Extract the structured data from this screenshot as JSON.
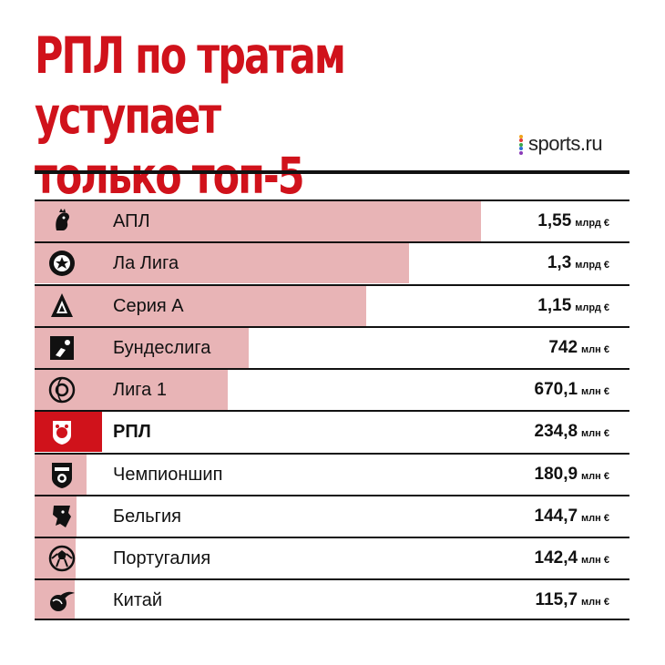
{
  "title_line1": "РПЛ по тратам уступает",
  "title_line2": "только топ-5",
  "brand": "sports.ru",
  "colors": {
    "accent": "#d0121b",
    "bar": "#e8b4b6",
    "text": "#111111",
    "logo_dots": [
      "#f0a31a",
      "#e23b3b",
      "#3aa74a",
      "#2f6fd6",
      "#8a3ab8"
    ]
  },
  "chart_data": {
    "type": "bar",
    "orientation": "horizontal",
    "title": "РПЛ по тратам уступает только топ-5",
    "categories": [
      "АПЛ",
      "Ла Лига",
      "Серия А",
      "Бундеслига",
      "Лига 1",
      "РПЛ",
      "Чемпионшип",
      "Бельгия",
      "Португалия",
      "Китай"
    ],
    "values_eur_millions": [
      1550,
      1300,
      1150,
      742,
      670.1,
      234.8,
      180.9,
      144.7,
      142.4,
      115.7
    ],
    "highlight": "РПЛ",
    "rows": [
      {
        "label": "АПЛ",
        "num": "1,55",
        "unit": "млрд €",
        "icon": "premier-league-lion-icon"
      },
      {
        "label": "Ла Лига",
        "num": "1,3",
        "unit": "млрд €",
        "icon": "laliga-ball-icon"
      },
      {
        "label": "Серия А",
        "num": "1,15",
        "unit": "млрд €",
        "icon": "serie-a-icon"
      },
      {
        "label": "Бундеслига",
        "num": "742",
        "unit": "млн €",
        "icon": "bundesliga-icon"
      },
      {
        "label": "Лига 1",
        "num": "670,1",
        "unit": "млн €",
        "icon": "ligue-1-icon"
      },
      {
        "label": "РПЛ",
        "num": "234,8",
        "unit": "млн €",
        "icon": "rpl-bear-icon"
      },
      {
        "label": "Чемпионшип",
        "num": "180,9",
        "unit": "млн €",
        "icon": "championship-crest-icon"
      },
      {
        "label": "Бельгия",
        "num": "144,7",
        "unit": "млн €",
        "icon": "belgium-lion-icon"
      },
      {
        "label": "Португалия",
        "num": "142,4",
        "unit": "млн €",
        "icon": "portugal-ball-icon"
      },
      {
        "label": "Китай",
        "num": "115,7",
        "unit": "млн €",
        "icon": "china-ball-icon"
      }
    ],
    "xlim": [
      0,
      2200
    ]
  }
}
